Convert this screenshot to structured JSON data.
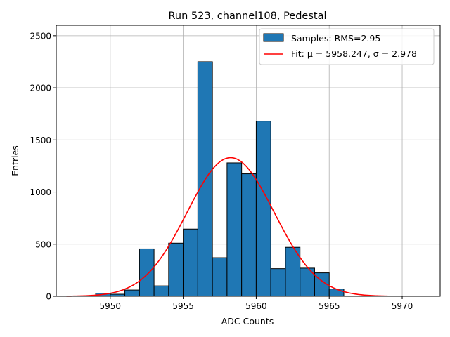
{
  "chart_data": {
    "type": "bar",
    "title": "Run 523, channel108, Pedestal",
    "xlabel": "ADC Counts",
    "ylabel": "Entries",
    "xlim": [
      5946.3,
      5972.6
    ],
    "ylim": [
      0,
      2600
    ],
    "xticks": [
      5950,
      5955,
      5960,
      5965,
      5970
    ],
    "yticks": [
      0,
      500,
      1000,
      1500,
      2000,
      2500
    ],
    "grid": true,
    "legend_position": "top-right",
    "histogram": {
      "bin_width": 1,
      "bin_edges_start": 5949,
      "values": [
        30,
        20,
        60,
        455,
        100,
        510,
        645,
        2250,
        370,
        1280,
        1175,
        1680,
        265,
        470,
        270,
        225,
        70,
        0,
        0,
        0,
        0,
        0
      ],
      "color": "#1f77b4",
      "edge_color": "#000000"
    },
    "fit_curve": {
      "mu": 5958.247,
      "sigma": 2.978,
      "amplitude": 1330,
      "x_range": [
        5947.0,
        5969.0
      ],
      "color": "#ff0000"
    },
    "legend": [
      {
        "label": "Samples: RMS=2.95",
        "type": "patch",
        "color": "#1f77b4"
      },
      {
        "label": "Fit: μ = 5958.247, σ = 2.978",
        "type": "line",
        "color": "#ff0000"
      }
    ]
  }
}
